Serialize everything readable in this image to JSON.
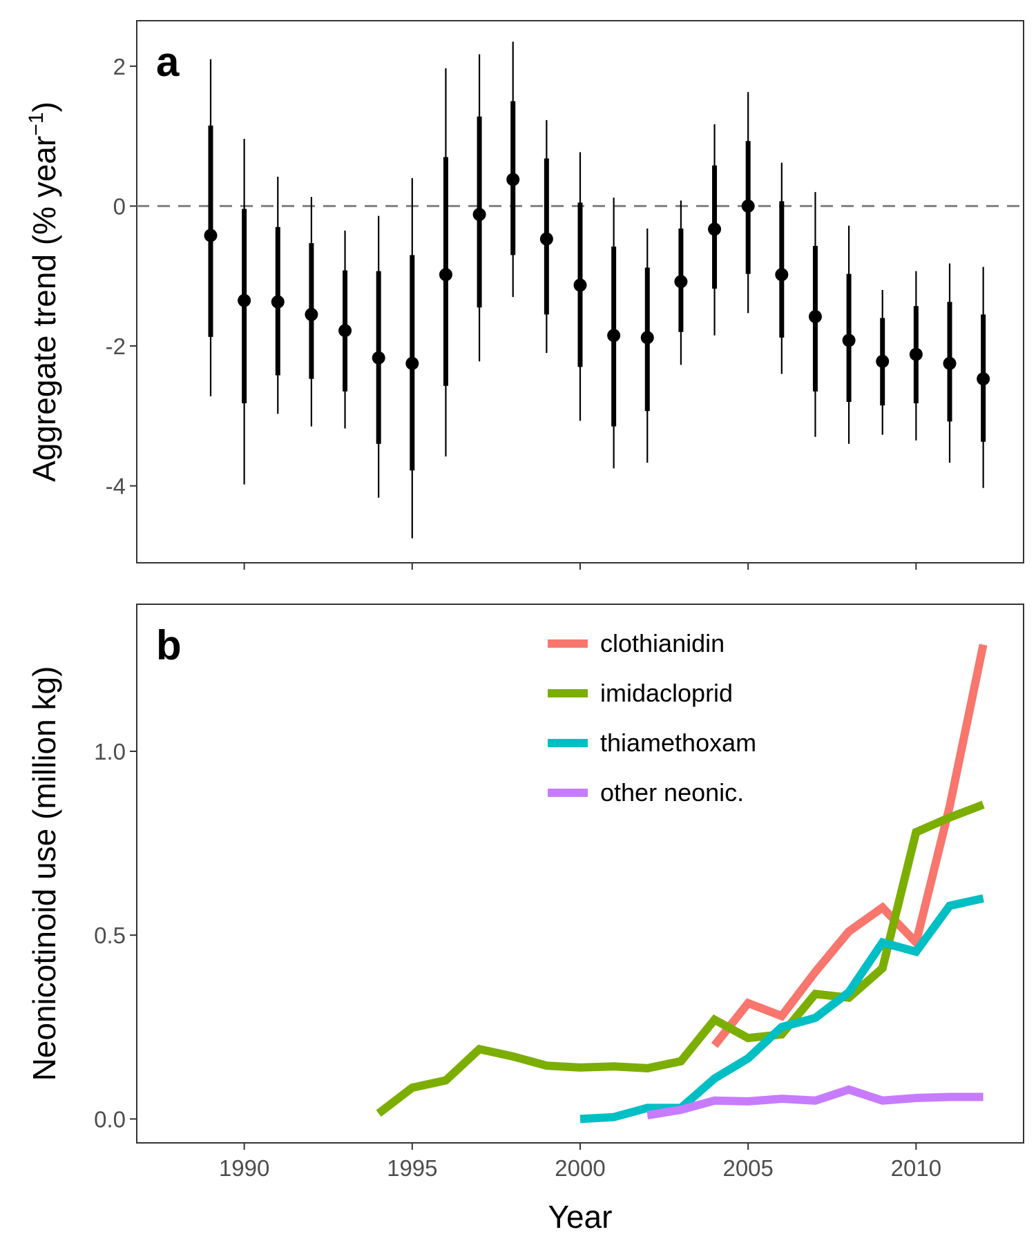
{
  "chart_data": [
    {
      "type": "scatter",
      "panel_label": "a",
      "ylabel": "Aggregate trend (% year",
      "ylabel_superscript": "−1",
      "ylabel_close": ")",
      "xlim": [
        1986.8,
        2013.2
      ],
      "ylim": [
        -5.1,
        2.65
      ],
      "y_ticks": [
        2,
        0,
        -2,
        -4
      ],
      "y_tick_labels": [
        "2",
        "0",
        "-2",
        "-4"
      ],
      "x_ticks": [
        1990,
        1995,
        2000,
        2005,
        2010
      ],
      "reference_line": {
        "y": 0,
        "style": "dashed",
        "color": "#808080"
      },
      "grid": false,
      "points": [
        {
          "x": 1989,
          "y": -0.42,
          "inner": [
            -1.87,
            1.15
          ],
          "outer": [
            -2.72,
            2.1
          ]
        },
        {
          "x": 1990,
          "y": -1.35,
          "inner": [
            -2.82,
            -0.04
          ],
          "outer": [
            -3.98,
            0.96
          ]
        },
        {
          "x": 1991,
          "y": -1.37,
          "inner": [
            -2.42,
            -0.3
          ],
          "outer": [
            -2.97,
            0.42
          ]
        },
        {
          "x": 1992,
          "y": -1.55,
          "inner": [
            -2.47,
            -0.53
          ],
          "outer": [
            -3.15,
            0.13
          ]
        },
        {
          "x": 1993,
          "y": -1.78,
          "inner": [
            -2.65,
            -0.92
          ],
          "outer": [
            -3.18,
            -0.35
          ]
        },
        {
          "x": 1994,
          "y": -2.17,
          "inner": [
            -3.4,
            -0.93
          ],
          "outer": [
            -4.17,
            -0.14
          ]
        },
        {
          "x": 1995,
          "y": -2.25,
          "inner": [
            -3.78,
            -0.7
          ],
          "outer": [
            -4.75,
            0.4
          ]
        },
        {
          "x": 1996,
          "y": -0.98,
          "inner": [
            -2.57,
            0.7
          ],
          "outer": [
            -3.58,
            1.97
          ]
        },
        {
          "x": 1997,
          "y": -0.12,
          "inner": [
            -1.45,
            1.28
          ],
          "outer": [
            -2.22,
            2.17
          ]
        },
        {
          "x": 1998,
          "y": 0.38,
          "inner": [
            -0.7,
            1.5
          ],
          "outer": [
            -1.3,
            2.35
          ]
        },
        {
          "x": 1999,
          "y": -0.47,
          "inner": [
            -1.55,
            0.68
          ],
          "outer": [
            -2.1,
            1.23
          ]
        },
        {
          "x": 2000,
          "y": -1.13,
          "inner": [
            -2.3,
            0.05
          ],
          "outer": [
            -3.07,
            0.77
          ]
        },
        {
          "x": 2001,
          "y": -1.85,
          "inner": [
            -3.15,
            -0.58
          ],
          "outer": [
            -3.75,
            0.12
          ]
        },
        {
          "x": 2002,
          "y": -1.88,
          "inner": [
            -2.93,
            -0.88
          ],
          "outer": [
            -3.67,
            -0.32
          ]
        },
        {
          "x": 2003,
          "y": -1.08,
          "inner": [
            -1.8,
            -0.32
          ],
          "outer": [
            -2.27,
            0.08
          ]
        },
        {
          "x": 2004,
          "y": -0.33,
          "inner": [
            -1.18,
            0.58
          ],
          "outer": [
            -1.85,
            1.17
          ]
        },
        {
          "x": 2005,
          "y": 0.0,
          "inner": [
            -0.97,
            0.93
          ],
          "outer": [
            -1.53,
            1.63
          ]
        },
        {
          "x": 2006,
          "y": -0.98,
          "inner": [
            -1.88,
            0.07
          ],
          "outer": [
            -2.4,
            0.62
          ]
        },
        {
          "x": 2007,
          "y": -1.58,
          "inner": [
            -2.65,
            -0.57
          ],
          "outer": [
            -3.3,
            0.2
          ]
        },
        {
          "x": 2008,
          "y": -1.92,
          "inner": [
            -2.8,
            -0.97
          ],
          "outer": [
            -3.4,
            -0.28
          ]
        },
        {
          "x": 2009,
          "y": -2.22,
          "inner": [
            -2.85,
            -1.6
          ],
          "outer": [
            -3.27,
            -1.2
          ]
        },
        {
          "x": 2010,
          "y": -2.12,
          "inner": [
            -2.82,
            -1.43
          ],
          "outer": [
            -3.35,
            -0.93
          ]
        },
        {
          "x": 2011,
          "y": -2.25,
          "inner": [
            -3.08,
            -1.37
          ],
          "outer": [
            -3.67,
            -0.82
          ]
        },
        {
          "x": 2012,
          "y": -2.47,
          "inner": [
            -3.37,
            -1.55
          ],
          "outer": [
            -4.03,
            -0.87
          ]
        }
      ]
    },
    {
      "type": "line",
      "panel_label": "b",
      "ylabel": "Neonicotinoid use (million kg)",
      "xlabel": "Year",
      "xlim": [
        1986.8,
        2013.2
      ],
      "ylim": [
        -0.065,
        1.4
      ],
      "y_ticks": [
        0.0,
        0.5,
        1.0
      ],
      "y_tick_labels": [
        "0.0",
        "0.5",
        "1.0"
      ],
      "x_ticks": [
        1990,
        1995,
        2000,
        2005,
        2010
      ],
      "x_tick_labels": [
        "1990",
        "1995",
        "2000",
        "2005",
        "2010"
      ],
      "legend_position": "top-right",
      "grid": false,
      "series": [
        {
          "name": "clothianidin",
          "color": "#F8766D",
          "x": [
            2004,
            2005,
            2006,
            2007,
            2008,
            2009,
            2010,
            2011,
            2012
          ],
          "y": [
            0.2,
            0.315,
            0.28,
            0.4,
            0.51,
            0.575,
            0.48,
            0.85,
            1.29
          ]
        },
        {
          "name": "imidacloprid",
          "color": "#7CAE00",
          "x": [
            1994,
            1995,
            1996,
            1997,
            1998,
            1999,
            2000,
            2001,
            2002,
            2003,
            2004,
            2005,
            2006,
            2007,
            2008,
            2009,
            2010,
            2011,
            2012
          ],
          "y": [
            0.015,
            0.085,
            0.105,
            0.19,
            0.17,
            0.145,
            0.14,
            0.143,
            0.138,
            0.157,
            0.27,
            0.22,
            0.23,
            0.34,
            0.33,
            0.41,
            0.78,
            0.82,
            0.855
          ]
        },
        {
          "name": "thiamethoxam",
          "color": "#00BFC4",
          "x": [
            2000,
            2001,
            2002,
            2003,
            2004,
            2005,
            2006,
            2007,
            2008,
            2009,
            2010,
            2011,
            2012
          ],
          "y": [
            0.0,
            0.005,
            0.03,
            0.03,
            0.11,
            0.165,
            0.25,
            0.275,
            0.345,
            0.48,
            0.455,
            0.58,
            0.6
          ]
        },
        {
          "name": "other neonic.",
          "color": "#C77CFF",
          "x": [
            2002,
            2003,
            2004,
            2005,
            2006,
            2007,
            2008,
            2009,
            2010,
            2011,
            2012
          ],
          "y": [
            0.01,
            0.025,
            0.05,
            0.048,
            0.055,
            0.05,
            0.08,
            0.05,
            0.057,
            0.06,
            0.06
          ]
        }
      ]
    }
  ]
}
